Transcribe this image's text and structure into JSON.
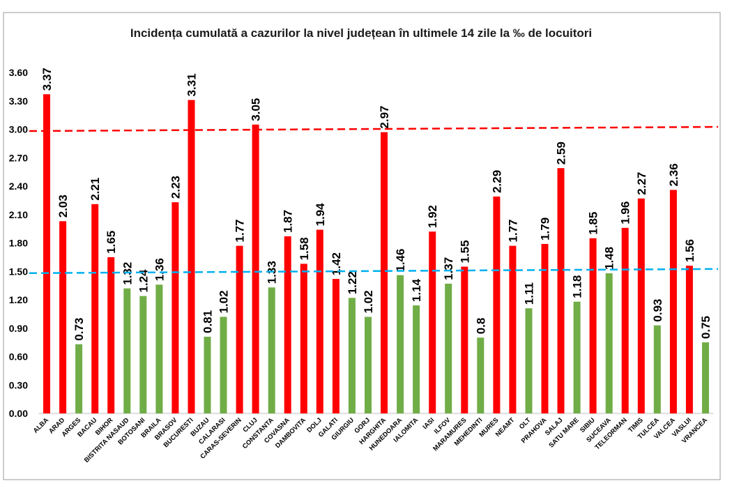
{
  "chart_data": {
    "type": "bar",
    "title": "Incidența cumulată a cazurilor la nivel județean în ultimele 14 zile la ‰ de locuitori",
    "xlabel": "",
    "ylabel": "",
    "ylim": [
      0,
      3.6
    ],
    "grid": false,
    "legend": "none",
    "y_ticks": [
      0,
      0.3,
      0.6,
      0.9,
      1.2,
      1.5,
      1.8,
      2.1,
      2.4,
      2.7,
      3.0,
      3.3,
      3.6
    ],
    "y_tick_labels": [
      "0.00",
      "0.30",
      "0.60",
      "0.90",
      "1.20",
      "1.50",
      "1.80",
      "2.10",
      "2.40",
      "2.70",
      "3.00",
      "3.30",
      "3.60"
    ],
    "categories": [
      "ALBA",
      "ARAD",
      "ARGES",
      "BACAU",
      "BIHOR",
      "BISTRITA NASAUD",
      "BOTOSANI",
      "BRAILA",
      "BRASOV",
      "BUCURESTI",
      "BUZAU",
      "CALARASI",
      "CARAS-SEVERIN",
      "CLUJ",
      "CONSTANTA",
      "COVASNA",
      "DAMBOVITA",
      "DOLJ",
      "GALATI",
      "GIURGIU",
      "GORJ",
      "HARGHITA",
      "HUNEDOARA",
      "IALOMITA",
      "IASI",
      "ILFOV",
      "MARAMURES",
      "MEHEDINTI",
      "MURES",
      "NEAMT",
      "OLT",
      "PRAHOVA",
      "SALAJ",
      "SATU MARE",
      "SIBIU",
      "SUCEAVA",
      "TELEORMAN",
      "TIMIS",
      "TULCEA",
      "VALCEA",
      "VASLUI",
      "VRANCEA"
    ],
    "values": [
      3.37,
      2.03,
      0.73,
      2.21,
      1.65,
      1.32,
      1.24,
      1.36,
      2.23,
      3.31,
      0.81,
      1.02,
      1.77,
      3.05,
      1.33,
      1.87,
      1.58,
      1.94,
      1.42,
      1.22,
      1.02,
      2.97,
      1.46,
      1.14,
      1.92,
      1.37,
      1.55,
      0.8,
      2.29,
      1.77,
      1.11,
      1.79,
      2.59,
      1.18,
      1.85,
      1.48,
      1.96,
      2.27,
      0.93,
      2.36,
      1.56,
      0.75
    ],
    "data_labels": [
      "3.37",
      "2.03",
      "0.73",
      "2.21",
      "1.65",
      "1.32",
      "1.24",
      "1.36",
      "2.23",
      "3.31",
      "0.81",
      "1.02",
      "1.77",
      "3.05",
      "1.33",
      "1.87",
      "1.58",
      "1.94",
      "1.42",
      "1.22",
      "1.02",
      "2.97",
      "1.46",
      "1.14",
      "1.92",
      "1.37",
      "1.55",
      "0.8",
      "2.29",
      "1.77",
      "1.11",
      "1.79",
      "2.59",
      "1.18",
      "1.85",
      "1.48",
      "1.96",
      "2.27",
      "0.93",
      "2.36",
      "1.56",
      "0.75"
    ],
    "bar_colors": [
      "#ff0000",
      "#ff0000",
      "#70ad47",
      "#ff0000",
      "#ff0000",
      "#70ad47",
      "#70ad47",
      "#70ad47",
      "#ff0000",
      "#ff0000",
      "#70ad47",
      "#70ad47",
      "#ff0000",
      "#ff0000",
      "#70ad47",
      "#ff0000",
      "#ff0000",
      "#ff0000",
      "#ff0000",
      "#70ad47",
      "#70ad47",
      "#ff0000",
      "#70ad47",
      "#70ad47",
      "#ff0000",
      "#70ad47",
      "#ff0000",
      "#70ad47",
      "#ff0000",
      "#ff0000",
      "#70ad47",
      "#ff0000",
      "#ff0000",
      "#70ad47",
      "#ff0000",
      "#70ad47",
      "#ff0000",
      "#ff0000",
      "#70ad47",
      "#ff0000",
      "#ff0000",
      "#70ad47"
    ],
    "reference_lines": [
      {
        "value": 3.0,
        "color": "#ff0000",
        "style": "dashed"
      },
      {
        "value": 1.5,
        "color": "#00b0f0",
        "style": "dashed"
      }
    ]
  }
}
